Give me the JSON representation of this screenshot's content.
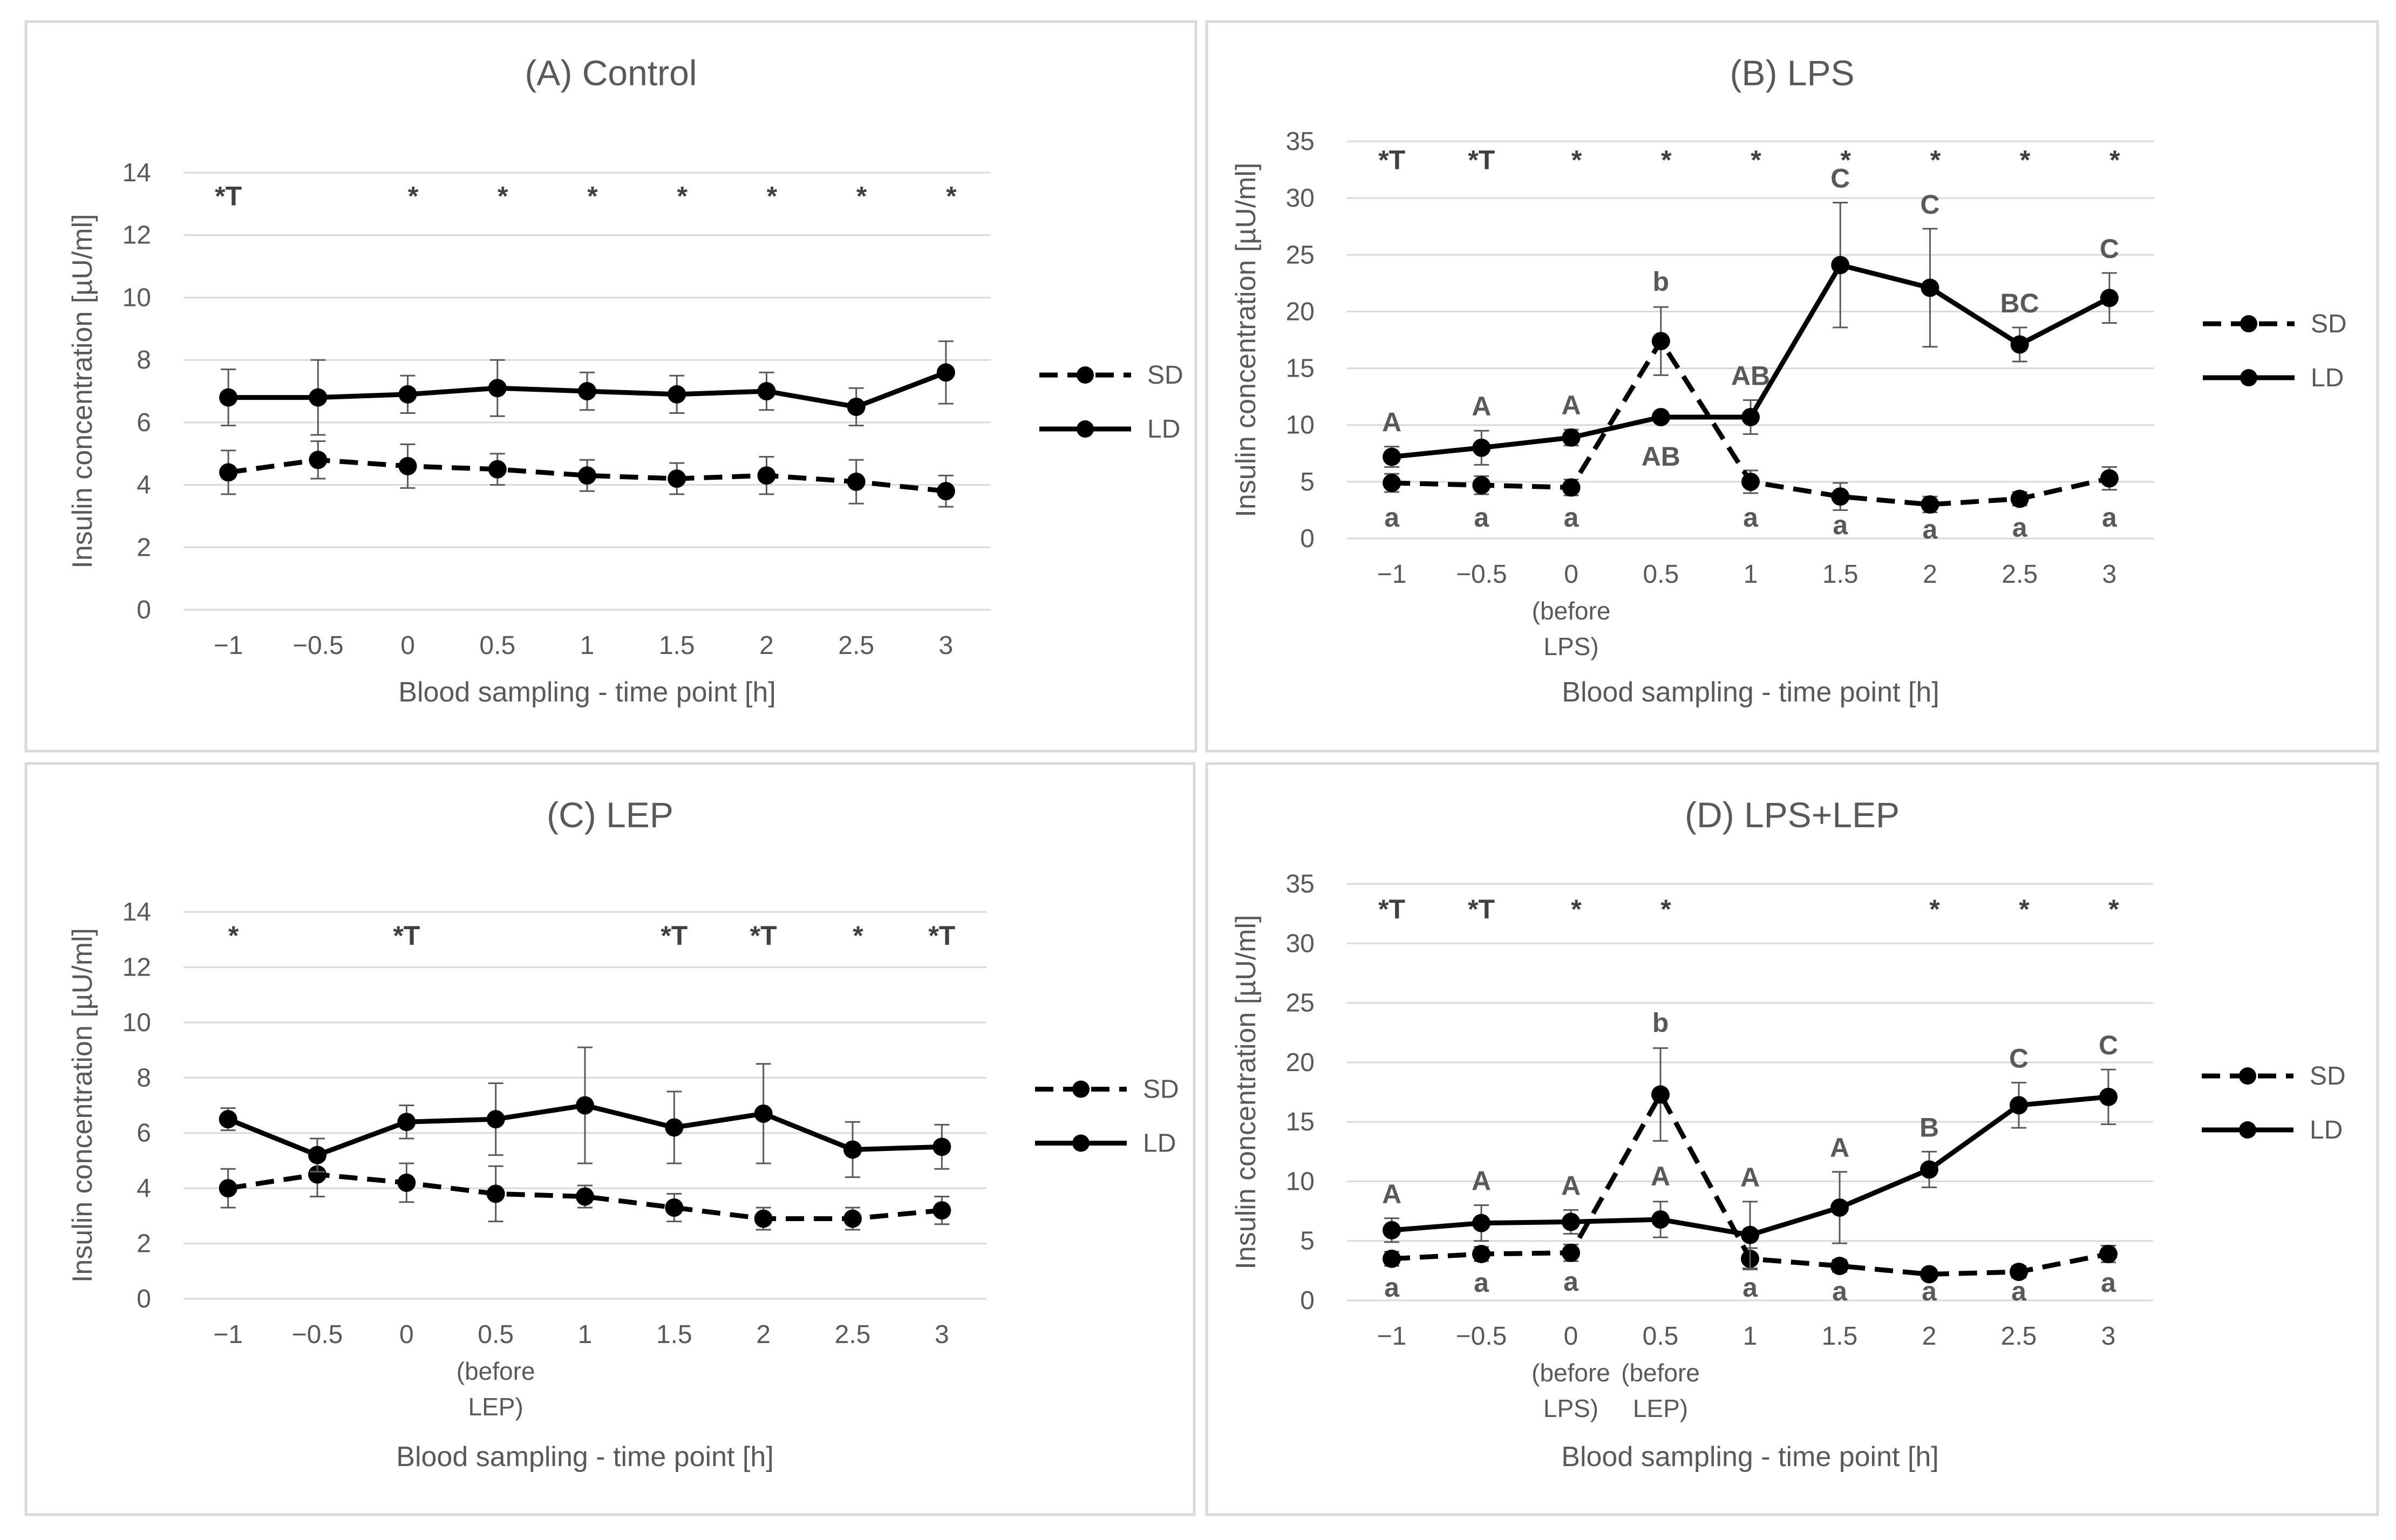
{
  "chart_data": [
    {
      "type": "line",
      "title": "(A) Control",
      "xlabel": "Blood sampling - time point [h]",
      "ylabel": "Insulin concentration [µU/ml]",
      "categories": [
        "−1",
        "−0.5",
        "0",
        "0.5",
        "1",
        "1.5",
        "2",
        "2.5",
        "3"
      ],
      "x_sublabels": [],
      "ylim": [
        0,
        14
      ],
      "yticks": [
        "0",
        "2",
        "4",
        "6",
        "8",
        "10",
        "12",
        "14"
      ],
      "grid": true,
      "legend": "right",
      "series": [
        {
          "name": "SD",
          "style": "dashed",
          "values": [
            4.4,
            4.8,
            4.6,
            4.5,
            4.3,
            4.2,
            4.3,
            4.1,
            3.8
          ],
          "errors": [
            0.7,
            0.6,
            0.7,
            0.5,
            0.5,
            0.5,
            0.6,
            0.7,
            0.5
          ],
          "labels": []
        },
        {
          "name": "LD",
          "style": "solid",
          "values": [
            6.8,
            6.8,
            6.9,
            7.1,
            7.0,
            6.9,
            7.0,
            6.5,
            7.6
          ],
          "errors": [
            0.9,
            1.2,
            0.6,
            0.9,
            0.6,
            0.6,
            0.6,
            0.6,
            1.0
          ],
          "labels": []
        }
      ],
      "sig_marks": [
        {
          "x": 0,
          "text": "*T"
        },
        {
          "x": 2,
          "text": "*"
        },
        {
          "x": 3,
          "text": "*"
        },
        {
          "x": 4,
          "text": "*"
        },
        {
          "x": 5,
          "text": "*"
        },
        {
          "x": 6,
          "text": "*"
        },
        {
          "x": 7,
          "text": "*"
        },
        {
          "x": 8,
          "text": "*"
        }
      ],
      "sig_mark_value": 13.3
    },
    {
      "type": "line",
      "title": "(B) LPS",
      "xlabel": "Blood sampling - time point [h]",
      "ylabel": "Insulin concentration [µU/ml]",
      "categories": [
        "−1",
        "−0.5",
        "0",
        "0.5",
        "1",
        "1.5",
        "2",
        "2.5",
        "3"
      ],
      "x_sublabels": [
        {
          "x": 2,
          "lines": [
            "(before",
            "LPS)"
          ]
        }
      ],
      "ylim": [
        0,
        35
      ],
      "yticks": [
        "0",
        "5",
        "10",
        "15",
        "20",
        "25",
        "30",
        "35"
      ],
      "grid": true,
      "legend": "right",
      "series": [
        {
          "name": "SD",
          "style": "dashed",
          "values": [
            4.9,
            4.7,
            4.5,
            17.4,
            5.0,
            3.7,
            3.0,
            3.5,
            5.3
          ],
          "errors": [
            0.8,
            0.8,
            0.7,
            3.0,
            1.0,
            1.2,
            0.7,
            0.6,
            1.0
          ],
          "labels": [
            {
              "x": 0,
              "text": "a"
            },
            {
              "x": 1,
              "text": "a"
            },
            {
              "x": 2,
              "text": "a"
            },
            {
              "x": 3,
              "text": "b",
              "pos": "above"
            },
            {
              "x": 4,
              "text": "a"
            },
            {
              "x": 5,
              "text": "a"
            },
            {
              "x": 6,
              "text": "a"
            },
            {
              "x": 7,
              "text": "a"
            },
            {
              "x": 8,
              "text": "a"
            }
          ]
        },
        {
          "name": "LD",
          "style": "solid",
          "values": [
            7.2,
            8.0,
            8.9,
            10.7,
            10.7,
            24.1,
            22.1,
            17.1,
            21.2
          ],
          "errors": [
            0.9,
            1.5,
            0.7,
            0.4,
            1.5,
            5.5,
            5.2,
            1.5,
            2.2
          ],
          "labels": [
            {
              "x": 0,
              "text": "A"
            },
            {
              "x": 1,
              "text": "A"
            },
            {
              "x": 2,
              "text": "A"
            },
            {
              "x": 3,
              "text": "AB",
              "pos": "below"
            },
            {
              "x": 4,
              "text": "AB"
            },
            {
              "x": 5,
              "text": "C"
            },
            {
              "x": 6,
              "text": "C"
            },
            {
              "x": 7,
              "text": "BC"
            },
            {
              "x": 8,
              "text": "C"
            }
          ]
        }
      ],
      "sig_marks": [
        {
          "x": 0,
          "text": "*T"
        },
        {
          "x": 1,
          "text": "*T"
        },
        {
          "x": 2,
          "text": "*"
        },
        {
          "x": 3,
          "text": "*"
        },
        {
          "x": 4,
          "text": "*"
        },
        {
          "x": 5,
          "text": "*"
        },
        {
          "x": 6,
          "text": "*"
        },
        {
          "x": 7,
          "text": "*"
        },
        {
          "x": 8,
          "text": "*"
        }
      ],
      "sig_mark_value": 33.5
    },
    {
      "type": "line",
      "title": "(C) LEP",
      "xlabel": "Blood sampling - time point [h]",
      "ylabel": "Insulin concentration [µU/ml]",
      "categories": [
        "−1",
        "−0.5",
        "0",
        "0.5",
        "1",
        "1.5",
        "2",
        "2.5",
        "3"
      ],
      "x_sublabels": [
        {
          "x": 3,
          "lines": [
            "(before",
            "LEP)"
          ]
        }
      ],
      "ylim": [
        0,
        14
      ],
      "yticks": [
        "0",
        "2",
        "4",
        "6",
        "8",
        "10",
        "12",
        "14"
      ],
      "grid": true,
      "legend": "right",
      "series": [
        {
          "name": "SD",
          "style": "dashed",
          "values": [
            4.0,
            4.5,
            4.2,
            3.8,
            3.7,
            3.3,
            2.9,
            2.9,
            3.2
          ],
          "errors": [
            0.7,
            0.8,
            0.7,
            1.0,
            0.4,
            0.5,
            0.4,
            0.4,
            0.5
          ],
          "labels": []
        },
        {
          "name": "LD",
          "style": "solid",
          "values": [
            6.5,
            5.2,
            6.4,
            6.5,
            7.0,
            6.2,
            6.7,
            5.4,
            5.5
          ],
          "errors": [
            0.4,
            0.6,
            0.6,
            1.3,
            2.1,
            1.3,
            1.8,
            1.0,
            0.8
          ],
          "labels": []
        }
      ],
      "sig_marks": [
        {
          "x": 0,
          "text": "*"
        },
        {
          "x": 2,
          "text": "*T"
        },
        {
          "x": 5,
          "text": "*T"
        },
        {
          "x": 6,
          "text": "*T"
        },
        {
          "x": 7,
          "text": "*"
        },
        {
          "x": 8,
          "text": "*T"
        }
      ],
      "sig_mark_value": 13.2
    },
    {
      "type": "line",
      "title": "(D) LPS+LEP",
      "xlabel": "Blood sampling - time point [h]",
      "ylabel": "Insulin concentration [µU/ml]",
      "categories": [
        "−1",
        "−0.5",
        "0",
        "0.5",
        "1",
        "1.5",
        "2",
        "2.5",
        "3"
      ],
      "x_sublabels": [
        {
          "x": 2,
          "lines": [
            "(before",
            "LPS)"
          ]
        },
        {
          "x": 3,
          "lines": [
            "(before",
            "LEP)"
          ]
        }
      ],
      "ylim": [
        0,
        35
      ],
      "yticks": [
        "0",
        "5",
        "10",
        "15",
        "20",
        "25",
        "30",
        "35"
      ],
      "grid": true,
      "legend": "right",
      "series": [
        {
          "name": "SD",
          "style": "dashed",
          "values": [
            3.5,
            3.9,
            4.0,
            17.3,
            3.5,
            2.9,
            2.2,
            2.4,
            3.9
          ],
          "errors": [
            0.6,
            0.6,
            0.7,
            3.9,
            0.9,
            0.5,
            0.4,
            0.5,
            0.7
          ],
          "labels": [
            {
              "x": 0,
              "text": "a"
            },
            {
              "x": 1,
              "text": "a"
            },
            {
              "x": 2,
              "text": "a"
            },
            {
              "x": 3,
              "text": "b",
              "pos": "above"
            },
            {
              "x": 4,
              "text": "a"
            },
            {
              "x": 5,
              "text": "a"
            },
            {
              "x": 6,
              "text": "a"
            },
            {
              "x": 7,
              "text": "a"
            },
            {
              "x": 8,
              "text": "a"
            }
          ]
        },
        {
          "name": "LD",
          "style": "solid",
          "values": [
            5.9,
            6.5,
            6.6,
            6.8,
            5.5,
            7.8,
            11.0,
            16.4,
            17.1
          ],
          "errors": [
            1.0,
            1.5,
            1.0,
            1.5,
            2.8,
            3.0,
            1.5,
            1.9,
            2.3
          ],
          "labels": [
            {
              "x": 0,
              "text": "A"
            },
            {
              "x": 1,
              "text": "A"
            },
            {
              "x": 2,
              "text": "A"
            },
            {
              "x": 3,
              "text": "A",
              "pos": "above_sd"
            },
            {
              "x": 4,
              "text": "A"
            },
            {
              "x": 5,
              "text": "A"
            },
            {
              "x": 6,
              "text": "B"
            },
            {
              "x": 7,
              "text": "C"
            },
            {
              "x": 8,
              "text": "C"
            }
          ]
        }
      ],
      "sig_marks": [
        {
          "x": 0,
          "text": "*T"
        },
        {
          "x": 1,
          "text": "*T"
        },
        {
          "x": 2,
          "text": "*"
        },
        {
          "x": 3,
          "text": "*"
        },
        {
          "x": 6,
          "text": "*"
        },
        {
          "x": 7,
          "text": "*"
        },
        {
          "x": 8,
          "text": "*"
        }
      ],
      "sig_mark_value": 33.0
    }
  ]
}
